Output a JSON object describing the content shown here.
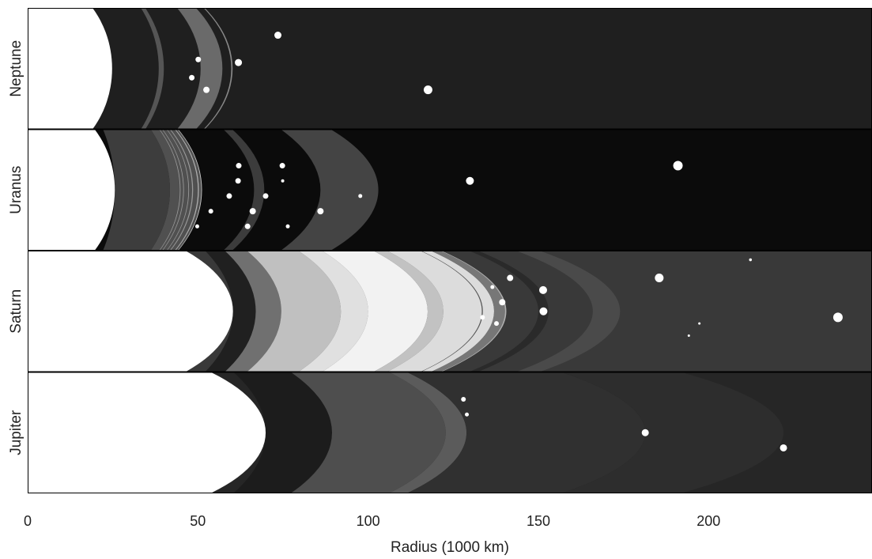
{
  "chart_data": {
    "type": "ring-diagram",
    "xlabel": "Radius (1000 km)",
    "xlim": [
      0,
      248
    ],
    "ticks": [
      0,
      50,
      100,
      150,
      200
    ],
    "tick_labels": [
      "0",
      "50",
      "100",
      "150",
      "200"
    ],
    "panels": [
      {
        "id": "neptune",
        "label": "Neptune",
        "planet_radius": 24.8,
        "background": "#1f1f1f",
        "rings": [
          {
            "r1": 38.5,
            "r2": 40.0,
            "color": "#555555"
          },
          {
            "r1": 50.8,
            "r2": 57.2,
            "color": "#6a6a6a"
          },
          {
            "r1": 59.8,
            "r2": 60.2,
            "color": "#888888"
          }
        ],
        "moons": [
          {
            "r": 48.2,
            "off": 0.15,
            "size": 3.5
          },
          {
            "r": 50.1,
            "off": -0.15,
            "size": 3.5
          },
          {
            "r": 52.5,
            "off": 0.35,
            "size": 4
          },
          {
            "r": 61.9,
            "off": -0.1,
            "size": 4.5
          },
          {
            "r": 73.5,
            "off": -0.55,
            "size": 4.5
          },
          {
            "r": 117.6,
            "off": 0.35,
            "size": 5.5
          }
        ]
      },
      {
        "id": "uranus",
        "label": "Uranus",
        "planet_radius": 25.6,
        "background": "#0b0b0b",
        "rings": [
          {
            "r1": 25.6,
            "r2": 41.8,
            "color": "#3d3d3d"
          },
          {
            "r1": 41.8,
            "r2": 51.1,
            "color": "#505050"
          },
          {
            "r1": 44.7,
            "r2": 44.9,
            "color": "#9a9a9a"
          },
          {
            "r1": 45.7,
            "r2": 45.9,
            "color": "#9a9a9a"
          },
          {
            "r1": 47.2,
            "r2": 47.4,
            "color": "#9a9a9a"
          },
          {
            "r1": 48.3,
            "r2": 48.6,
            "color": "#9a9a9a"
          },
          {
            "r1": 50.0,
            "r2": 50.3,
            "color": "#b0b0b0"
          },
          {
            "r1": 51.0,
            "r2": 51.2,
            "color": "#cfcfcf"
          },
          {
            "r1": 66.5,
            "r2": 69.5,
            "color": "#3c3c3c"
          },
          {
            "r1": 86.0,
            "r2": 103.0,
            "color": "#444444"
          }
        ],
        "moons": [
          {
            "r": 49.8,
            "off": 0.6,
            "size": 2.5
          },
          {
            "r": 53.8,
            "off": 0.35,
            "size": 3
          },
          {
            "r": 59.2,
            "off": 0.1,
            "size": 3.5
          },
          {
            "r": 61.8,
            "off": -0.15,
            "size": 3.5
          },
          {
            "r": 62.0,
            "off": -0.4,
            "size": 3.5
          },
          {
            "r": 64.6,
            "off": 0.6,
            "size": 3.5
          },
          {
            "r": 66.1,
            "off": 0.35,
            "size": 4
          },
          {
            "r": 69.9,
            "off": 0.1,
            "size": 3.5
          },
          {
            "r": 74.8,
            "off": -0.4,
            "size": 3.5
          },
          {
            "r": 74.9,
            "off": -0.15,
            "size": 2
          },
          {
            "r": 76.4,
            "off": 0.6,
            "size": 2.5
          },
          {
            "r": 86.0,
            "off": 0.35,
            "size": 4
          },
          {
            "r": 97.7,
            "off": 0.1,
            "size": 2.5
          },
          {
            "r": 129.9,
            "off": -0.15,
            "size": 5
          },
          {
            "r": 191.0,
            "off": -0.4,
            "size": 6
          }
        ]
      },
      {
        "id": "saturn",
        "label": "Saturn",
        "planet_radius": 60.3,
        "background": "#393939",
        "rings": [
          {
            "r1": 60.3,
            "r2": 67.0,
            "color": "#202020"
          },
          {
            "r1": 67.0,
            "r2": 74.5,
            "color": "#707070"
          },
          {
            "r1": 74.5,
            "r2": 92.0,
            "color": "#c0c0c0"
          },
          {
            "r1": 92.0,
            "r2": 100.0,
            "color": "#e0e0e0"
          },
          {
            "r1": 100.0,
            "r2": 117.5,
            "color": "#f2f2f2"
          },
          {
            "r1": 117.5,
            "r2": 122.1,
            "color": "#c2c2c2"
          },
          {
            "r1": 122.1,
            "r2": 137.0,
            "color": "#dcdcdc"
          },
          {
            "r1": 133.4,
            "r2": 133.7,
            "color": "#555555"
          },
          {
            "r1": 137.0,
            "r2": 140.2,
            "color": "#777777"
          },
          {
            "r1": 140.2,
            "r2": 140.6,
            "color": "#b0b0b0"
          },
          {
            "r1": 150.0,
            "r2": 153.0,
            "color": "#2a2a2a"
          },
          {
            "r1": 166.0,
            "r2": 174.0,
            "color": "#4a4a4a"
          }
        ],
        "moons": [
          {
            "r": 133.6,
            "off": 0.1,
            "size": 3
          },
          {
            "r": 136.5,
            "off": -0.4,
            "size": 2.5
          },
          {
            "r": 137.7,
            "off": 0.2,
            "size": 3
          },
          {
            "r": 139.4,
            "off": -0.15,
            "size": 4
          },
          {
            "r": 141.7,
            "off": -0.55,
            "size": 4
          },
          {
            "r": 151.4,
            "off": -0.35,
            "size": 5
          },
          {
            "r": 151.5,
            "off": 0.0,
            "size": 5
          },
          {
            "r": 185.5,
            "off": -0.55,
            "size": 5.5
          },
          {
            "r": 194.2,
            "off": 0.4,
            "size": 1.5
          },
          {
            "r": 197.3,
            "off": 0.2,
            "size": 1.5
          },
          {
            "r": 212.3,
            "off": -0.85,
            "size": 1.8
          },
          {
            "r": 238.0,
            "off": 0.1,
            "size": 6
          }
        ]
      },
      {
        "id": "jupiter",
        "label": "Jupiter",
        "planet_radius": 69.9,
        "background": "#262626",
        "rings": [
          {
            "r1": 69.9,
            "r2": 89.4,
            "color": "#1c1c1c"
          },
          {
            "r1": 89.4,
            "r2": 122.8,
            "color": "#4e4e4e"
          },
          {
            "r1": 122.8,
            "r2": 128.9,
            "color": "#5b5b5b"
          },
          {
            "r1": 128.9,
            "r2": 181.4,
            "color": "#303030"
          },
          {
            "r1": 181.4,
            "r2": 222.0,
            "color": "#2d2d2d"
          }
        ],
        "moons": [
          {
            "r": 128.0,
            "off": -0.55,
            "size": 3
          },
          {
            "r": 129.0,
            "off": -0.3,
            "size": 2.5
          },
          {
            "r": 181.4,
            "off": 0.0,
            "size": 4.5
          },
          {
            "r": 222.0,
            "off": 0.25,
            "size": 4.5
          }
        ]
      }
    ]
  }
}
